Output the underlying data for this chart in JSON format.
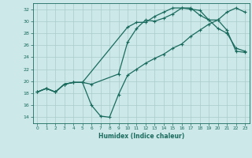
{
  "xlabel": "Humidex (Indice chaleur)",
  "bg_color": "#cce8e8",
  "grid_color": "#b0d8d8",
  "line_color": "#1a6b5e",
  "xlim": [
    -0.5,
    23.5
  ],
  "ylim": [
    13,
    33
  ],
  "yticks": [
    14,
    16,
    18,
    20,
    22,
    24,
    26,
    28,
    30,
    32
  ],
  "xticks": [
    0,
    1,
    2,
    3,
    4,
    5,
    6,
    7,
    8,
    9,
    10,
    11,
    12,
    13,
    14,
    15,
    16,
    17,
    18,
    19,
    20,
    21,
    22,
    23
  ],
  "line1_x": [
    0,
    1,
    2,
    3,
    4,
    5,
    10,
    11,
    12,
    13,
    14,
    15,
    16,
    17,
    18,
    19,
    20,
    21,
    22,
    23
  ],
  "line1_y": [
    18.2,
    18.8,
    18.2,
    19.5,
    19.8,
    19.8,
    29.0,
    29.8,
    29.8,
    30.8,
    31.5,
    32.2,
    32.2,
    32.0,
    31.8,
    30.2,
    28.8,
    28.0,
    25.5,
    25.0
  ],
  "line2_x": [
    0,
    1,
    2,
    3,
    4,
    5,
    6,
    9,
    10,
    11,
    12,
    13,
    14,
    15,
    16,
    17,
    18,
    19,
    20,
    21,
    22,
    23
  ],
  "line2_y": [
    18.2,
    18.8,
    18.2,
    19.5,
    19.8,
    19.8,
    19.5,
    21.2,
    26.5,
    28.8,
    30.2,
    30.0,
    30.5,
    31.2,
    32.2,
    32.2,
    31.0,
    30.2,
    30.2,
    28.5,
    25.0,
    24.8
  ],
  "line3_x": [
    0,
    1,
    2,
    3,
    4,
    5,
    6,
    7,
    8,
    9,
    10,
    11,
    12,
    13,
    14,
    15,
    16,
    17,
    18,
    19,
    20,
    21,
    22,
    23
  ],
  "line3_y": [
    18.2,
    18.8,
    18.2,
    19.5,
    19.8,
    19.8,
    16.0,
    14.2,
    14.0,
    17.8,
    21.0,
    22.0,
    23.0,
    23.8,
    24.5,
    25.5,
    26.2,
    27.5,
    28.5,
    29.5,
    30.2,
    31.5,
    32.2,
    31.5
  ]
}
